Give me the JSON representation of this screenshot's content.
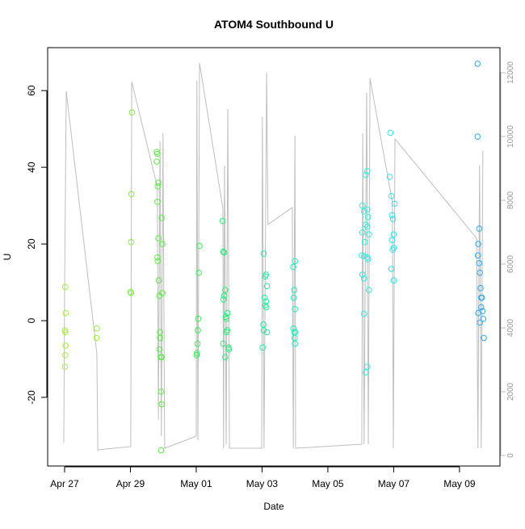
{
  "chart_data": {
    "type": "scatter",
    "title": "ATOM4 Southbound U",
    "x_label": "Date",
    "y_label": "U",
    "xlim": [
      -0.515,
      13.23
    ],
    "ylim": [
      -37.9,
      71.2
    ],
    "y2lim": [
      -329,
      12785
    ],
    "xticks": [
      {
        "value": 0,
        "label": "Apr 27"
      },
      {
        "value": 2,
        "label": "Apr 29"
      },
      {
        "value": 4,
        "label": "May 01"
      },
      {
        "value": 6,
        "label": "May 03"
      },
      {
        "value": 8,
        "label": "May 05"
      },
      {
        "value": 10,
        "label": "May 07"
      },
      {
        "value": 12,
        "label": "May 09"
      }
    ],
    "yticks": [
      -20,
      0,
      20,
      40,
      60
    ],
    "y2ticks": [
      0,
      2000,
      4000,
      6000,
      8000,
      10000,
      12000
    ],
    "series": [
      {
        "type": "line",
        "axis": "y2",
        "color": "#bebebe",
        "x": [
          -0.025,
          0,
          0.05,
          0.98,
          1.01,
          2.01,
          2.04,
          2.82,
          2.85,
          2.9,
          2.94,
          2.99,
          3.04,
          4.0,
          4.02,
          4.05,
          4.1,
          4.81,
          4.83,
          4.86,
          4.91,
          4.96,
          5.01,
          5.99,
          6.01,
          6.06,
          6.14,
          6.18,
          6.92,
          6.95,
          7.0,
          7.02,
          9.03,
          9.06,
          9.1,
          9.18,
          9.23,
          9.28,
          9.96,
          9.99,
          10.04,
          12.52,
          12.56,
          12.61,
          12.66,
          12.71
        ],
        "values": [
          405,
          5241,
          11419,
          3190,
          177,
          279,
          11723,
          8406,
          1114,
          9849,
          608,
          10103,
          228,
          608,
          11748,
          481,
          12306,
          7748,
          228,
          9090,
          354,
          10862,
          228,
          228,
          10609,
          228,
          12002,
          7242,
          7773,
          228,
          10027,
          228,
          354,
          10103,
          354,
          11369,
          354,
          11824,
          7950,
          228,
          9925,
          6811,
          228,
          9090,
          228,
          9545
        ]
      },
      {
        "color": "#a8ee40",
        "x": [
          0.02,
          0.03,
          0.01,
          0.02,
          0.03,
          0.02,
          0.01
        ],
        "values": [
          8.8,
          2,
          -2.5,
          -3,
          -6.5,
          -9,
          -12
        ]
      },
      {
        "color": "#98ee40",
        "x": [
          0.98,
          0.97
        ],
        "values": [
          -2,
          -4.5
        ]
      },
      {
        "color": "#80ee40",
        "x": [
          2.05,
          2.03,
          2.02,
          2.0,
          2.02
        ],
        "values": [
          54.3,
          33,
          20.5,
          7.5,
          7.2
        ]
      },
      {
        "color": "#58ee40",
        "x": [
          2.8,
          2.82,
          2.8,
          2.85,
          2.83,
          2.82,
          2.95,
          2.85,
          2.97,
          2.82,
          2.83,
          2.86,
          2.97,
          2.88,
          2.9,
          2.9,
          2.88,
          2.92,
          2.95,
          2.93,
          2.95,
          2.93
        ],
        "values": [
          44,
          43.5,
          41.5,
          36,
          35,
          31,
          26.8,
          21.5,
          20,
          16.5,
          15.5,
          10.5,
          7.2,
          6.5,
          -3,
          -4.5,
          -7.5,
          -9.5,
          -9.5,
          -18.5,
          -21.8,
          -33.8
        ]
      },
      {
        "color": "#38ee58",
        "x": [
          4.1,
          4.08,
          4.06,
          4.05,
          4.04,
          4.02,
          4.01
        ],
        "values": [
          19.5,
          12.5,
          0.5,
          -2.5,
          -6,
          -8.5,
          -9
        ]
      },
      {
        "color": "#28ee78",
        "x": [
          4.8,
          4.82,
          4.85,
          4.88,
          4.85,
          4.83,
          4.95,
          4.9,
          4.92,
          4.94,
          4.82,
          4.98,
          4.99,
          4.88,
          4.92
        ],
        "values": [
          26,
          18,
          17.8,
          8,
          6.5,
          5.5,
          2,
          1,
          0.5,
          -2.5,
          -6,
          -7,
          -7.5,
          -9.5,
          -3
        ]
      },
      {
        "color": "#22eea0",
        "x": [
          6.05,
          6.12,
          6.1,
          6.15,
          6.08,
          6.12,
          6.1,
          6.13,
          6.04,
          6.05,
          6.15,
          6.02
        ],
        "values": [
          17.5,
          12,
          11.5,
          9,
          6,
          5,
          4,
          3.5,
          -1,
          -2.5,
          -3,
          -7
        ]
      },
      {
        "color": "#22eebb",
        "x": [
          7.0,
          6.95,
          6.98,
          6.96,
          7.0,
          6.95,
          6.98,
          7.01,
          6.99,
          7.0
        ],
        "values": [
          15.5,
          14,
          8,
          6,
          3,
          -2,
          -3,
          -3,
          -4.5,
          -6
        ]
      },
      {
        "color": "#30eede",
        "x": [
          9.2,
          9.15,
          9.05,
          9.2,
          9.1,
          9.22,
          9.15,
          9.2,
          9.05,
          9.25,
          9.12,
          9.03,
          9.1,
          9.2,
          9.22,
          9.05,
          9.1,
          9.25,
          9.1,
          9.2,
          9.15
        ],
        "values": [
          39,
          38,
          30,
          29,
          28.5,
          27,
          25,
          24.5,
          23,
          22.5,
          20.5,
          17,
          16.8,
          16.5,
          16,
          12,
          11,
          8,
          1.8,
          -12,
          -13.5
        ]
      },
      {
        "color": "#30e0f0",
        "x": [
          9.9,
          9.88,
          9.93,
          10.03,
          9.95,
          9.98,
          10.0,
          9.95,
          10.0,
          9.97,
          9.93,
          10.0
        ],
        "values": [
          49,
          37.5,
          32.5,
          30.5,
          27.5,
          26.5,
          22.5,
          21,
          19,
          18.5,
          13.5,
          10.5
        ]
      },
      {
        "color": "#30a8f0",
        "x": [
          12.55,
          12.55,
          12.6,
          12.57,
          12.56,
          12.6,
          12.62,
          12.64,
          12.68,
          12.66,
          12.66,
          12.7,
          12.57,
          12.72,
          12.62,
          12.74
        ],
        "values": [
          67,
          48,
          24,
          20,
          17,
          15,
          12.5,
          8.5,
          6,
          6,
          3.5,
          2.5,
          2,
          0.5,
          -0.5,
          -4.5
        ]
      }
    ]
  }
}
